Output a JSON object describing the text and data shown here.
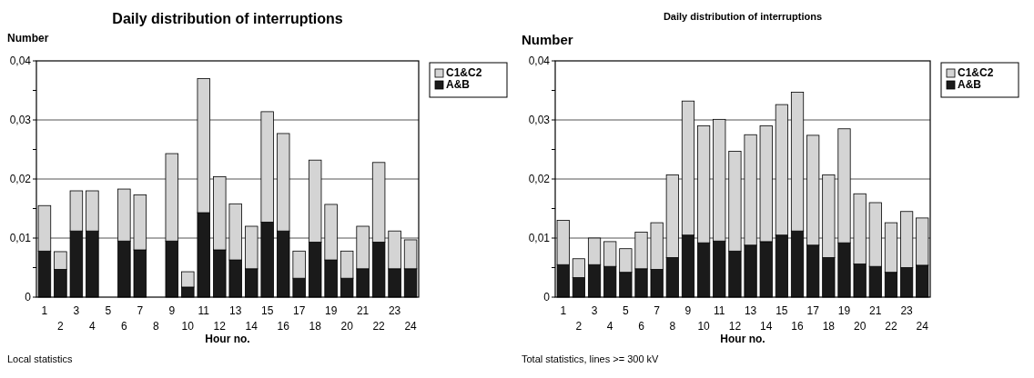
{
  "chart_data": [
    {
      "type": "bar",
      "title": "Daily distribution of interruptions",
      "ylabel": "Number",
      "xlabel": "Hour no.",
      "annotations": [
        "Local statistics"
      ],
      "categories": [
        "1",
        "2",
        "3",
        "4",
        "5",
        "6",
        "7",
        "8",
        "9",
        "10",
        "11",
        "12",
        "13",
        "14",
        "15",
        "16",
        "17",
        "18",
        "19",
        "20",
        "21",
        "22",
        "23",
        "24"
      ],
      "stacked": true,
      "series": [
        {
          "name": "A&B",
          "color": "#1a1a1a",
          "values": [
            0.0078,
            0.0047,
            0.0112,
            0.0112,
            0,
            0.0095,
            0.008,
            0,
            0.0095,
            0.0017,
            0.0143,
            0.008,
            0.0063,
            0.0048,
            0.0127,
            0.0112,
            0.0032,
            0.0093,
            0.0063,
            0.0032,
            0.0048,
            0.0093,
            0.0048,
            0.0048
          ]
        },
        {
          "name": "C1&C2",
          "color": "#d4d4d4",
          "values": [
            0.0077,
            0.003,
            0.0068,
            0.0068,
            0,
            0.0088,
            0.0093,
            0,
            0.0148,
            0.0026,
            0.0227,
            0.0124,
            0.0095,
            0.0072,
            0.0187,
            0.0165,
            0.0046,
            0.0139,
            0.0094,
            0.0046,
            0.0072,
            0.0135,
            0.0064,
            0.0049
          ]
        }
      ],
      "ylim": [
        0,
        0.04
      ],
      "yticks": [
        {
          "value": 0,
          "label": "0"
        },
        {
          "value": 0.005,
          "label": null
        },
        {
          "value": 0.01,
          "label": "0,01"
        },
        {
          "value": 0.015,
          "label": null
        },
        {
          "value": 0.02,
          "label": "0,02"
        },
        {
          "value": 0.025,
          "label": null
        },
        {
          "value": 0.03,
          "label": "0,03"
        },
        {
          "value": 0.035,
          "label": null
        },
        {
          "value": 0.04,
          "label": "0,04"
        }
      ],
      "grid": "y",
      "legend": "top right"
    },
    {
      "type": "bar",
      "title": "Daily distribution of interruptions",
      "ylabel": "Number",
      "xlabel": "Hour no.",
      "annotations": [
        "Total statistics, lines >= 300 kV"
      ],
      "categories": [
        "1",
        "2",
        "3",
        "4",
        "5",
        "6",
        "7",
        "8",
        "9",
        "10",
        "11",
        "12",
        "13",
        "14",
        "15",
        "16",
        "17",
        "18",
        "19",
        "20",
        "21",
        "22",
        "23",
        "24"
      ],
      "stacked": true,
      "series": [
        {
          "name": "A&B",
          "color": "#1a1a1a",
          "values": [
            0.0055,
            0.0033,
            0.0055,
            0.0052,
            0.0042,
            0.0048,
            0.0047,
            0.0067,
            0.0105,
            0.0092,
            0.0095,
            0.0078,
            0.0088,
            0.0094,
            0.0105,
            0.0112,
            0.0088,
            0.0067,
            0.0092,
            0.0056,
            0.0052,
            0.0042,
            0.005,
            0.0054
          ]
        },
        {
          "name": "C1&C2",
          "color": "#d4d4d4",
          "values": [
            0.0075,
            0.0032,
            0.0045,
            0.0042,
            0.004,
            0.0062,
            0.0079,
            0.014,
            0.0227,
            0.0198,
            0.0206,
            0.0169,
            0.0187,
            0.0196,
            0.0221,
            0.0235,
            0.0186,
            0.014,
            0.0193,
            0.0119,
            0.0108,
            0.0084,
            0.0095,
            0.008
          ]
        }
      ],
      "ylim": [
        0,
        0.04
      ],
      "yticks": [
        {
          "value": 0,
          "label": "0"
        },
        {
          "value": 0.005,
          "label": null
        },
        {
          "value": 0.01,
          "label": "0,01"
        },
        {
          "value": 0.015,
          "label": null
        },
        {
          "value": 0.02,
          "label": "0,02"
        },
        {
          "value": 0.025,
          "label": null
        },
        {
          "value": 0.03,
          "label": "0,03"
        },
        {
          "value": 0.035,
          "label": null
        },
        {
          "value": 0.04,
          "label": "0,04"
        }
      ],
      "grid": "y",
      "legend": "top right"
    }
  ]
}
